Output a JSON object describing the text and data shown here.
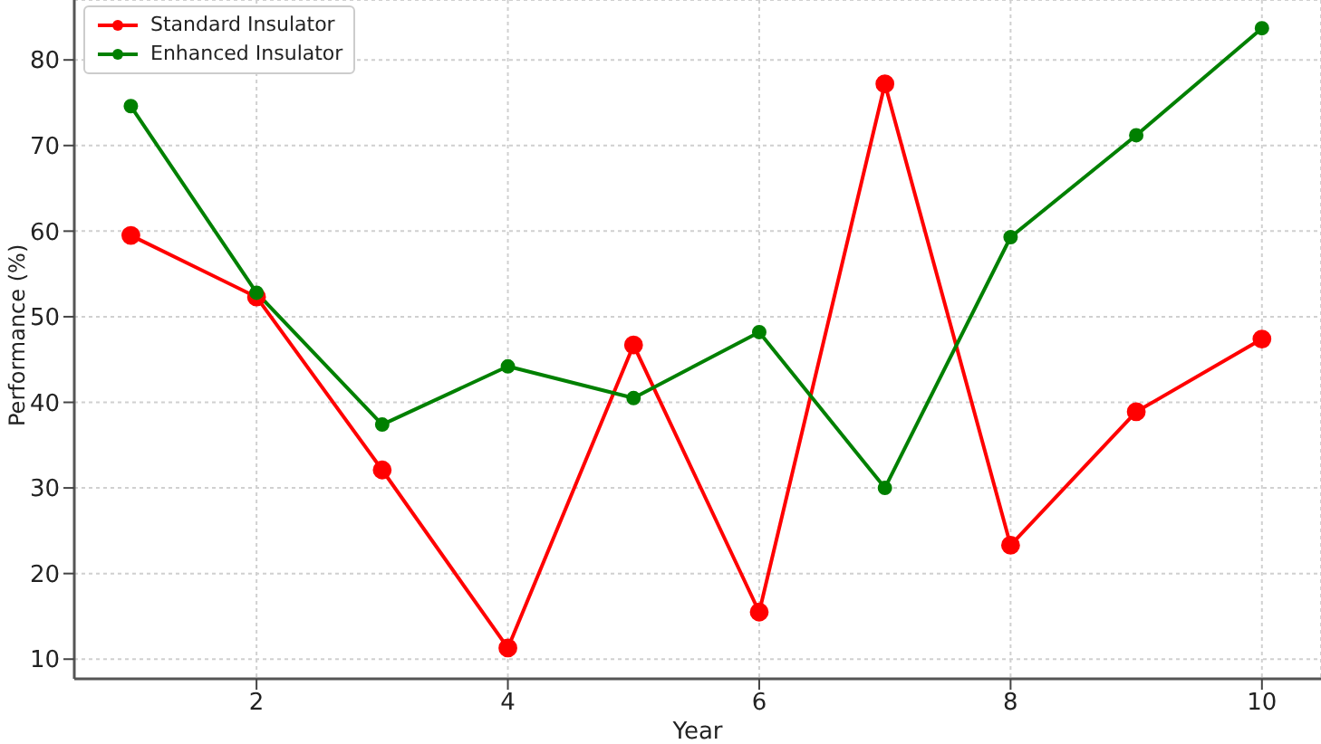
{
  "chart_data": {
    "type": "line",
    "xlabel": "Year",
    "ylabel": "Performance (%)",
    "x": [
      1,
      2,
      3,
      4,
      5,
      6,
      7,
      8,
      9,
      10
    ],
    "series": [
      {
        "name": "Standard Insulator",
        "color": "#ff0000",
        "values": [
          59.5,
          52.3,
          32.1,
          11.3,
          46.7,
          15.5,
          77.2,
          23.3,
          38.9,
          47.4
        ]
      },
      {
        "name": "Enhanced Insulator",
        "color": "#008000",
        "values": [
          74.6,
          52.8,
          37.4,
          44.2,
          40.5,
          48.2,
          30.0,
          59.3,
          71.2,
          83.7
        ]
      }
    ],
    "xlim": [
      0.55,
      10.47
    ],
    "xticks": [
      2,
      4,
      6,
      8,
      10
    ],
    "ylim": [
      7.7,
      87
    ],
    "yticks": [
      10,
      20,
      30,
      40,
      50,
      60,
      70,
      80
    ],
    "grid": true,
    "legend": "top left",
    "marker": "circle",
    "line_style": "solid"
  }
}
